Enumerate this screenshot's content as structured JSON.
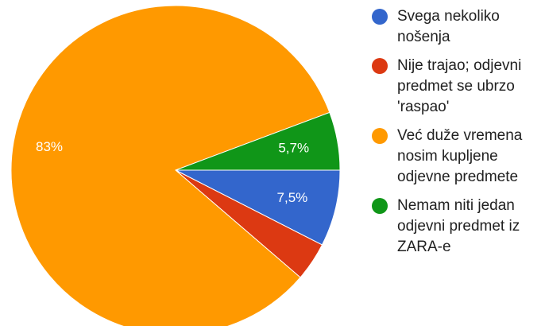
{
  "chart_data": {
    "type": "pie",
    "categories": [
      "Svega nekoliko nošenja",
      "Nije trajao; odjevni predmet se ubrzo 'raspao'",
      "Već duže vremena nosim kupljene odjevne predmete",
      "Nemam niti jedan odjevni predmet iz ZARA-e"
    ],
    "values": [
      7.5,
      3.8,
      83,
      5.7
    ],
    "value_labels": [
      "7,5%",
      null,
      "83%",
      "5,7%"
    ],
    "colors": [
      "#3366cc",
      "#dc3912",
      "#ff9900",
      "#109618"
    ],
    "legend": "right"
  }
}
